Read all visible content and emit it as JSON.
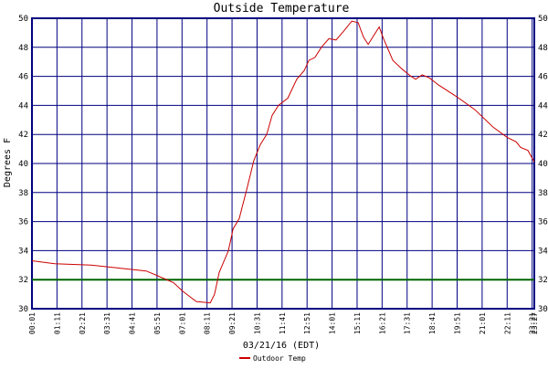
{
  "chart_data": {
    "type": "line",
    "title": "Outside Temperature",
    "x_label": "03/21/16 (EDT)",
    "y_label": "Degrees F",
    "xlim": [
      1,
      1407
    ],
    "ylim": [
      30,
      50
    ],
    "xticks": [
      {
        "value": 1,
        "label": "00:01"
      },
      {
        "value": 71,
        "label": "01:11"
      },
      {
        "value": 141,
        "label": "02:21"
      },
      {
        "value": 211,
        "label": "03:31"
      },
      {
        "value": 281,
        "label": "04:41"
      },
      {
        "value": 351,
        "label": "05:51"
      },
      {
        "value": 421,
        "label": "07:01"
      },
      {
        "value": 491,
        "label": "08:11"
      },
      {
        "value": 561,
        "label": "09:21"
      },
      {
        "value": 631,
        "label": "10:31"
      },
      {
        "value": 701,
        "label": "11:41"
      },
      {
        "value": 771,
        "label": "12:51"
      },
      {
        "value": 841,
        "label": "14:01"
      },
      {
        "value": 911,
        "label": "15:11"
      },
      {
        "value": 981,
        "label": "16:21"
      },
      {
        "value": 1051,
        "label": "17:31"
      },
      {
        "value": 1121,
        "label": "18:41"
      },
      {
        "value": 1191,
        "label": "19:51"
      },
      {
        "value": 1261,
        "label": "21:01"
      },
      {
        "value": 1331,
        "label": "22:11"
      },
      {
        "value": 1401,
        "label": "23:21"
      },
      {
        "value": 1407,
        "label": "23:27"
      }
    ],
    "yticks": [
      30,
      32,
      34,
      36,
      38,
      40,
      42,
      44,
      46,
      48,
      50
    ],
    "grid": true,
    "grid_color": "#000080",
    "reference_lines": [
      {
        "value": 32,
        "color": "#006400"
      }
    ],
    "legend": "bottom",
    "series": [
      {
        "name": "Outdoor Temp",
        "color": "#cc0000",
        "x": [
          1,
          65,
          167,
          244,
          321,
          359,
          397,
          423,
          461,
          500,
          512,
          525,
          551,
          564,
          581,
          602,
          622,
          640,
          658,
          673,
          691,
          717,
          742,
          763,
          776,
          793,
          811,
          832,
          852,
          873,
          896,
          914,
          929,
          942,
          960,
          973,
          985,
          1011,
          1037,
          1062,
          1075,
          1093,
          1113,
          1139,
          1190,
          1241,
          1292,
          1331,
          1356,
          1369,
          1389,
          1407
        ],
        "values": [
          33.3,
          33.1,
          33.0,
          32.8,
          32.6,
          32.2,
          31.8,
          31.2,
          30.5,
          30.4,
          31.0,
          32.5,
          34.0,
          35.5,
          36.2,
          38.2,
          40.2,
          41.3,
          42.0,
          43.3,
          44.0,
          44.5,
          45.8,
          46.4,
          47.1,
          47.3,
          48.0,
          48.6,
          48.5,
          49.1,
          49.8,
          49.7,
          48.7,
          48.2,
          48.9,
          49.4,
          48.6,
          47.1,
          46.5,
          46.0,
          45.8,
          46.1,
          45.9,
          45.4,
          44.6,
          43.7,
          42.5,
          41.8,
          41.5,
          41.1,
          40.9,
          40.1
        ]
      }
    ]
  }
}
